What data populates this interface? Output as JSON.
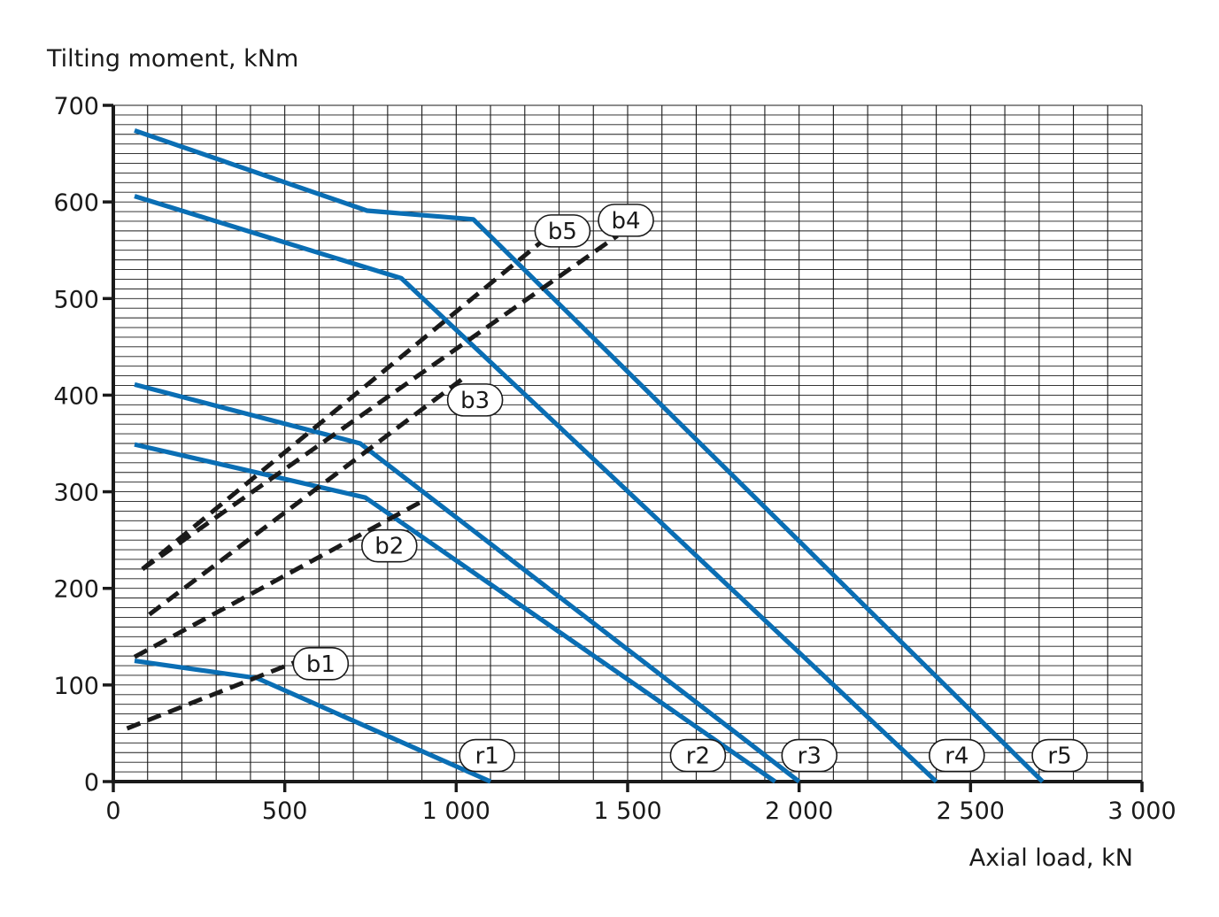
{
  "chart_data": {
    "type": "line",
    "ylabel": "Tilting moment, kNm",
    "xlabel": "Axial load, kN",
    "xlim": [
      0,
      3000
    ],
    "ylim": [
      0,
      700
    ],
    "x_ticks": [
      0,
      500,
      1000,
      1500,
      2000,
      2500,
      3000
    ],
    "x_tick_labels": [
      "0",
      "500",
      "1 000",
      "1 500",
      "2 000",
      "2 500",
      "3 000"
    ],
    "y_ticks": [
      0,
      100,
      200,
      300,
      400,
      500,
      600,
      700
    ],
    "y_tick_labels": [
      "0",
      "100",
      "200",
      "300",
      "400",
      "500",
      "600",
      "700"
    ],
    "grid": true,
    "series": [
      {
        "name": "r1",
        "style": "solid",
        "color": "#0a6eb4",
        "points": [
          [
            62,
            125
          ],
          [
            420,
            107
          ],
          [
            1100,
            0
          ]
        ]
      },
      {
        "name": "r2",
        "style": "solid",
        "color": "#0a6eb4",
        "points": [
          [
            62,
            349
          ],
          [
            735,
            294
          ],
          [
            1930,
            0
          ]
        ]
      },
      {
        "name": "r3",
        "style": "solid",
        "color": "#0a6eb4",
        "points": [
          [
            62,
            411
          ],
          [
            720,
            350
          ],
          [
            2000,
            0
          ]
        ]
      },
      {
        "name": "r4",
        "style": "solid",
        "color": "#0a6eb4",
        "points": [
          [
            62,
            606
          ],
          [
            840,
            521
          ],
          [
            2400,
            0
          ]
        ]
      },
      {
        "name": "r5",
        "style": "solid",
        "color": "#0a6eb4",
        "points": [
          [
            62,
            674
          ],
          [
            740,
            591
          ],
          [
            1050,
            582
          ],
          [
            2710,
            0
          ]
        ]
      },
      {
        "name": "b1",
        "style": "dashed",
        "color": "#1a1a1a",
        "points": [
          [
            40,
            55
          ],
          [
            540,
            125
          ]
        ]
      },
      {
        "name": "b2",
        "style": "dashed",
        "color": "#1a1a1a",
        "points": [
          [
            62,
            129
          ],
          [
            900,
            290
          ]
        ]
      },
      {
        "name": "b3",
        "style": "dashed",
        "color": "#1a1a1a",
        "points": [
          [
            105,
            173
          ],
          [
            1030,
            420
          ]
        ]
      },
      {
        "name": "b4",
        "style": "dashed",
        "color": "#1a1a1a",
        "points": [
          [
            85,
            220
          ],
          [
            1470,
            565
          ]
        ]
      },
      {
        "name": "b5",
        "style": "dashed",
        "color": "#1a1a1a",
        "points": [
          [
            85,
            220
          ],
          [
            1270,
            565
          ]
        ]
      }
    ],
    "annotations": [
      {
        "text": "r1",
        "x": 1090,
        "y": 27
      },
      {
        "text": "r2",
        "x": 1705,
        "y": 27
      },
      {
        "text": "r3",
        "x": 2030,
        "y": 27
      },
      {
        "text": "r4",
        "x": 2460,
        "y": 27
      },
      {
        "text": "r5",
        "x": 2760,
        "y": 27
      },
      {
        "text": "b1",
        "x": 605,
        "y": 122
      },
      {
        "text": "b2",
        "x": 805,
        "y": 244
      },
      {
        "text": "b3",
        "x": 1055,
        "y": 395
      },
      {
        "text": "b4",
        "x": 1495,
        "y": 581
      },
      {
        "text": "b5",
        "x": 1310,
        "y": 570
      }
    ]
  }
}
